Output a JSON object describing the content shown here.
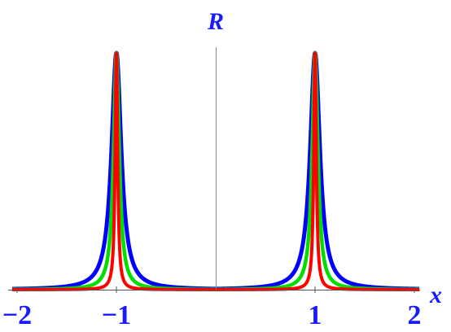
{
  "chart_data": {
    "type": "line",
    "xlabel": "x",
    "ylabel": "R",
    "xlim": [
      -2.05,
      2.05
    ],
    "ylim": [
      0,
      1
    ],
    "x_ticks": [
      -2,
      -1,
      1,
      2
    ],
    "x_tick_labels": [
      "−2",
      "−1",
      "1",
      "2"
    ],
    "grid": false,
    "legend": "none",
    "peak_positions": [
      -1,
      1
    ],
    "peak_value": 1,
    "series": [
      {
        "color": "#0000ff",
        "half_width": 0.06
      },
      {
        "color": "#00dd00",
        "half_width": 0.035
      },
      {
        "color": "#ff0000",
        "half_width": 0.015
      }
    ]
  }
}
